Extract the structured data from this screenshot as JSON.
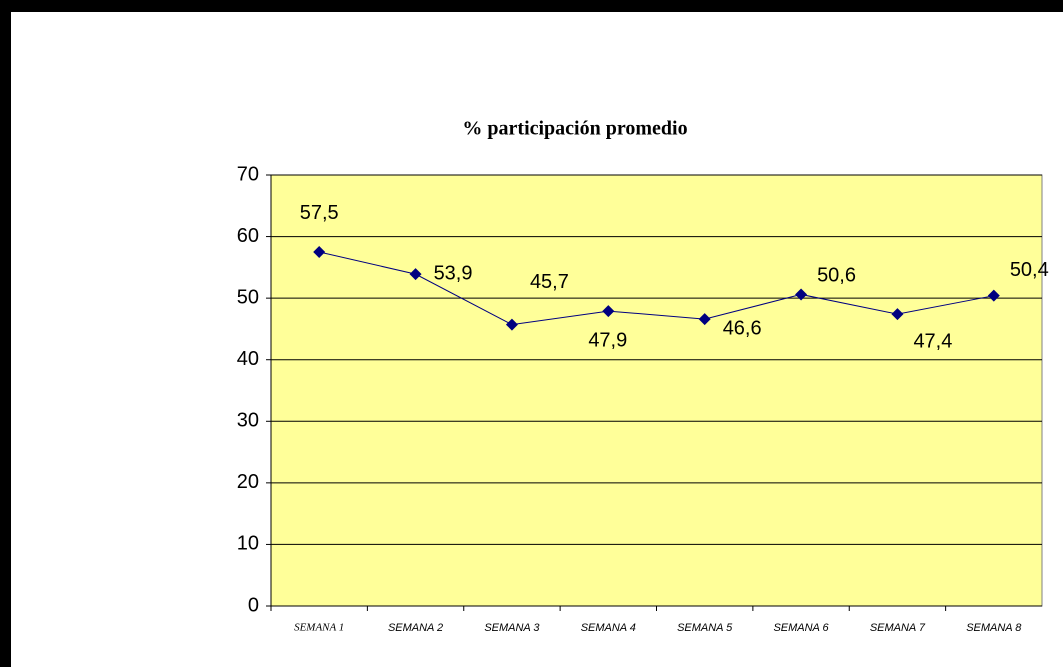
{
  "chart_data": {
    "type": "line",
    "title": "% participación promedio",
    "categories": [
      "SEMANA 1",
      "SEMANA 2",
      "SEMANA 3",
      "SEMANA 4",
      "SEMANA 5",
      "SEMANA 6",
      "SEMANA 7",
      "SEMANA 8"
    ],
    "series": [
      {
        "color": "#000080",
        "values": [
          57.5,
          53.9,
          45.7,
          47.9,
          46.6,
          50.6,
          47.4,
          50.4
        ],
        "value_labels": [
          "57,5",
          "53,9",
          "45,7",
          "47,9",
          "46,6",
          "50,6",
          "47,4",
          "50,4"
        ]
      }
    ],
    "ylim": [
      0,
      70
    ],
    "yticks": [
      0,
      10,
      20,
      30,
      40,
      50,
      60,
      70
    ],
    "grid": true,
    "plot_background": "#ffff99"
  }
}
